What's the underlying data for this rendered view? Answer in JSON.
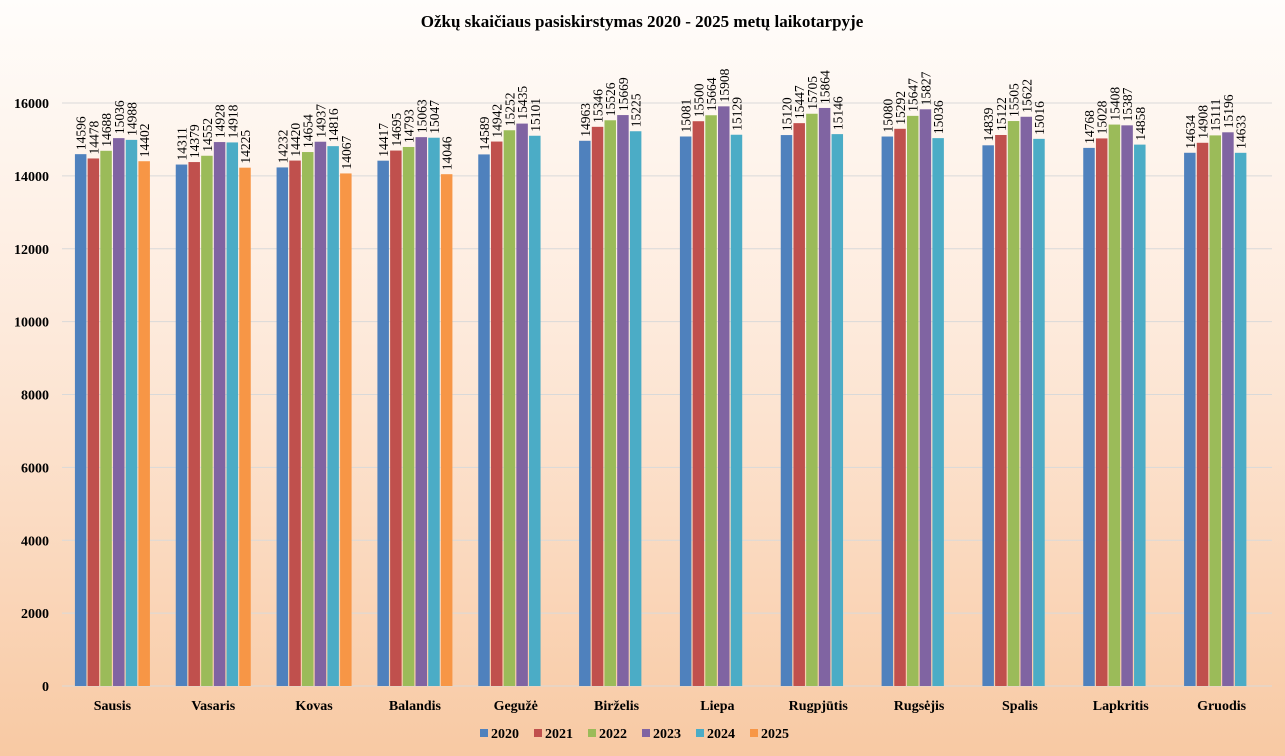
{
  "chart_data": {
    "type": "bar",
    "title": "Ožkų skaičiaus pasiskirstymas 2020 - 2025 metų laikotarpyje",
    "xlabel": "",
    "ylabel": "",
    "ylim": [
      0,
      16000
    ],
    "yticks": [
      "0",
      "2000",
      "4000",
      "6000",
      "8000",
      "10000",
      "12000",
      "14000",
      "16000"
    ],
    "grid": true,
    "legend_position": "bottom",
    "categories": [
      "Sausis",
      "Vasaris",
      "Kovas",
      "Balandis",
      "Gegužė",
      "Birželis",
      "Liepa",
      "Rugpjūtis",
      "Rugsėjis",
      "Spalis",
      "Lapkritis",
      "Gruodis"
    ],
    "series": [
      {
        "name": "2020",
        "color": "#4f81bd",
        "values": [
          14596,
          14311,
          14232,
          14417,
          14589,
          14963,
          15081,
          15120,
          15080,
          14839,
          14768,
          14634
        ]
      },
      {
        "name": "2021",
        "color": "#c0504d",
        "values": [
          14478,
          14379,
          14420,
          14695,
          14942,
          15346,
          15500,
          15447,
          15292,
          15122,
          15028,
          14908
        ]
      },
      {
        "name": "2022",
        "color": "#9bbb59",
        "values": [
          14688,
          14552,
          14654,
          14793,
          15252,
          15526,
          15664,
          15705,
          15647,
          15505,
          15408,
          15111
        ]
      },
      {
        "name": "2023",
        "color": "#8064a2",
        "values": [
          15036,
          14928,
          14937,
          15063,
          15435,
          15669,
          15908,
          15864,
          15827,
          15622,
          15387,
          15196
        ]
      },
      {
        "name": "2024",
        "color": "#4bacc6",
        "values": [
          14988,
          14918,
          14816,
          15047,
          15101,
          15225,
          15129,
          15146,
          15036,
          15016,
          14858,
          14633
        ]
      },
      {
        "name": "2025",
        "color": "#f79646",
        "values": [
          14402,
          14225,
          14067,
          14046,
          null,
          null,
          null,
          null,
          null,
          null,
          null,
          null
        ]
      }
    ]
  }
}
